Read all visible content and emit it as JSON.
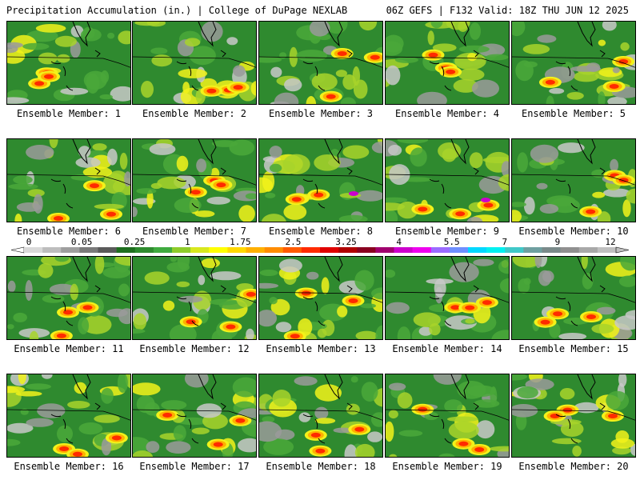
{
  "header": {
    "title_left": "Precipitation Accumulation (in.) | College of DuPage NEXLAB",
    "title_right": "06Z GEFS | F132 Valid: 18Z THU JUN 12 2025"
  },
  "panels": [
    {
      "label": "Ensemble Member: 1"
    },
    {
      "label": "Ensemble Member: 2"
    },
    {
      "label": "Ensemble Member: 3"
    },
    {
      "label": "Ensemble Member: 4"
    },
    {
      "label": "Ensemble Member: 5"
    },
    {
      "label": "Ensemble Member: 6"
    },
    {
      "label": "Ensemble Member: 7"
    },
    {
      "label": "Ensemble Member: 8"
    },
    {
      "label": "Ensemble Member: 9"
    },
    {
      "label": "Ensemble Member: 10"
    },
    {
      "label": "Ensemble Member: 11"
    },
    {
      "label": "Ensemble Member: 12"
    },
    {
      "label": "Ensemble Member: 13"
    },
    {
      "label": "Ensemble Member: 14"
    },
    {
      "label": "Ensemble Member: 15"
    },
    {
      "label": "Ensemble Member: 16"
    },
    {
      "label": "Ensemble Member: 17"
    },
    {
      "label": "Ensemble Member: 18"
    },
    {
      "label": "Ensemble Member: 19"
    },
    {
      "label": "Ensemble Member: 20"
    }
  ],
  "color_scale": {
    "ticks": [
      "0",
      "0.05",
      "0.25",
      "1",
      "1.75",
      "2.5",
      "3.25",
      "4",
      "5.5",
      "7",
      "9",
      "12"
    ],
    "colors": [
      "#d9d9d9",
      "#bdbdbd",
      "#9e9e9e",
      "#7a7a7a",
      "#5a5a5a",
      "#1f6f1f",
      "#2e8b2e",
      "#3faa3f",
      "#8fcc2a",
      "#d8e81e",
      "#ffff00",
      "#ffd800",
      "#ffb000",
      "#ff8c00",
      "#ff5a00",
      "#ff2a00",
      "#e00000",
      "#b00000",
      "#8a0020",
      "#a0006e",
      "#cc00cc",
      "#ee00ee",
      "#9b6bff",
      "#6f8fff",
      "#00d8ff",
      "#00f0f0",
      "#40c8c8",
      "#6f9fa0",
      "#7a8a8a",
      "#909090",
      "#a8a8a8",
      "#c0c0c0"
    ]
  },
  "field_colors": {
    "green": "#2f8a2f",
    "light_green": "#4aa83a",
    "yellow_green": "#a8d42a",
    "yellow": "#f2f21a",
    "orange": "#ffb000",
    "red": "#ff2a00",
    "magenta": "#cc00cc",
    "gray": "#9a9a9a",
    "light_gray": "#c8c8c8"
  }
}
